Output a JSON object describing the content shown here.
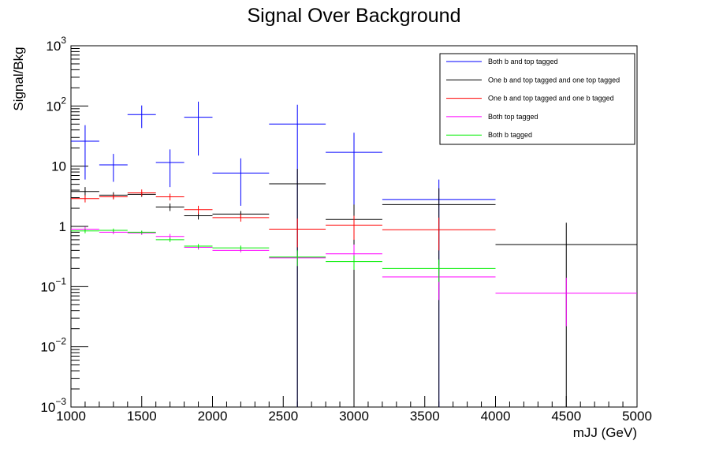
{
  "chart_data": {
    "type": "scatter",
    "title": "Signal Over Background",
    "xlabel": "mJJ (GeV)",
    "ylabel": "Signal/Bkg",
    "xlim": [
      1000,
      5000
    ],
    "ylim": [
      0.001,
      1000
    ],
    "y_scale": "log",
    "x_ticks": [
      1000,
      1500,
      2000,
      2500,
      3000,
      3500,
      4000,
      4500,
      5000
    ],
    "x_tick_labels": [
      "1000",
      "1500",
      "2000",
      "2500",
      "3000",
      "3500",
      "4000",
      "4500",
      "5000"
    ],
    "y_ticks": [
      {
        "value": 0.001,
        "base": "10",
        "exp": "−3"
      },
      {
        "value": 0.01,
        "base": "10",
        "exp": "−2"
      },
      {
        "value": 0.1,
        "base": "10",
        "exp": "−1"
      },
      {
        "value": 1,
        "base": "1",
        "exp": ""
      },
      {
        "value": 10,
        "base": "10",
        "exp": ""
      },
      {
        "value": 100,
        "base": "10",
        "exp": "2"
      },
      {
        "value": 1000,
        "base": "10",
        "exp": "3"
      }
    ],
    "legend_position": "top-right",
    "series": [
      {
        "name": "Both b and top tagged",
        "color": "#0000ff",
        "points": [
          {
            "x0": 1000,
            "x1": 1200,
            "y": 26,
            "ylo": 6,
            "yhi": 48
          },
          {
            "x0": 1200,
            "x1": 1400,
            "y": 10.5,
            "ylo": 5.5,
            "yhi": 16
          },
          {
            "x0": 1400,
            "x1": 1600,
            "y": 72,
            "ylo": 43,
            "yhi": 102
          },
          {
            "x0": 1600,
            "x1": 1800,
            "y": 11.5,
            "ylo": 4.5,
            "yhi": 19
          },
          {
            "x0": 1800,
            "x1": 2000,
            "y": 65,
            "ylo": 15,
            "yhi": 118
          },
          {
            "x0": 2000,
            "x1": 2400,
            "y": 7.7,
            "ylo": 2.2,
            "yhi": 13.5
          },
          {
            "x0": 2400,
            "x1": 2800,
            "y": 50,
            "ylo": 0.001,
            "yhi": 105
          },
          {
            "x0": 2800,
            "x1": 3200,
            "y": 17,
            "ylo": 0.001,
            "yhi": 36
          },
          {
            "x0": 3200,
            "x1": 4000,
            "y": 2.8,
            "ylo": 0.001,
            "yhi": 6
          }
        ]
      },
      {
        "name": "One b and top tagged and one top tagged",
        "color": "#000000",
        "points": [
          {
            "x0": 1000,
            "x1": 1200,
            "y": 3.8,
            "ylo": 3.1,
            "yhi": 4.5
          },
          {
            "x0": 1200,
            "x1": 1400,
            "y": 3.3,
            "ylo": 2.9,
            "yhi": 3.7
          },
          {
            "x0": 1400,
            "x1": 1600,
            "y": 3.4,
            "ylo": 3.1,
            "yhi": 3.7
          },
          {
            "x0": 1600,
            "x1": 1800,
            "y": 2.1,
            "ylo": 1.8,
            "yhi": 2.4
          },
          {
            "x0": 1800,
            "x1": 2000,
            "y": 1.5,
            "ylo": 1.3,
            "yhi": 1.7
          },
          {
            "x0": 2000,
            "x1": 2400,
            "y": 1.6,
            "ylo": 1.4,
            "yhi": 1.8
          },
          {
            "x0": 2400,
            "x1": 2800,
            "y": 5.1,
            "ylo": 0.001,
            "yhi": 9
          },
          {
            "x0": 2800,
            "x1": 3200,
            "y": 1.3,
            "ylo": 0.001,
            "yhi": 2.3
          },
          {
            "x0": 3200,
            "x1": 4000,
            "y": 2.3,
            "ylo": 0.001,
            "yhi": 4.3
          },
          {
            "x0": 4000,
            "x1": 5000,
            "y": 0.5,
            "ylo": 0.001,
            "yhi": 1.15
          }
        ]
      },
      {
        "name": "One b and top tagged and one b tagged",
        "color": "#ff0000",
        "points": [
          {
            "x0": 1000,
            "x1": 1200,
            "y": 2.9,
            "ylo": 2.5,
            "yhi": 3.3
          },
          {
            "x0": 1200,
            "x1": 1400,
            "y": 3.1,
            "ylo": 2.8,
            "yhi": 3.4
          },
          {
            "x0": 1400,
            "x1": 1600,
            "y": 3.6,
            "ylo": 3.2,
            "yhi": 4.1
          },
          {
            "x0": 1600,
            "x1": 1800,
            "y": 3.1,
            "ylo": 2.7,
            "yhi": 3.5
          },
          {
            "x0": 1800,
            "x1": 2000,
            "y": 1.9,
            "ylo": 1.6,
            "yhi": 2.2
          },
          {
            "x0": 2000,
            "x1": 2400,
            "y": 1.4,
            "ylo": 1.2,
            "yhi": 1.6
          },
          {
            "x0": 2400,
            "x1": 2800,
            "y": 0.9,
            "ylo": 0.45,
            "yhi": 1.35
          },
          {
            "x0": 2800,
            "x1": 3200,
            "y": 1.05,
            "ylo": 0.6,
            "yhi": 1.5
          },
          {
            "x0": 3200,
            "x1": 4000,
            "y": 0.88,
            "ylo": 0.4,
            "yhi": 1.4
          }
        ]
      },
      {
        "name": "Both top tagged",
        "color": "#ff00ff",
        "points": [
          {
            "x0": 1000,
            "x1": 1200,
            "y": 0.9,
            "ylo": 0.82,
            "yhi": 0.98
          },
          {
            "x0": 1200,
            "x1": 1400,
            "y": 0.8,
            "ylo": 0.74,
            "yhi": 0.86
          },
          {
            "x0": 1400,
            "x1": 1600,
            "y": 0.78,
            "ylo": 0.72,
            "yhi": 0.84
          },
          {
            "x0": 1600,
            "x1": 1800,
            "y": 0.68,
            "ylo": 0.61,
            "yhi": 0.75
          },
          {
            "x0": 1800,
            "x1": 2000,
            "y": 0.45,
            "ylo": 0.41,
            "yhi": 0.49
          },
          {
            "x0": 2000,
            "x1": 2400,
            "y": 0.4,
            "ylo": 0.37,
            "yhi": 0.43
          },
          {
            "x0": 2400,
            "x1": 2800,
            "y": 0.3,
            "ylo": 0.22,
            "yhi": 0.38
          },
          {
            "x0": 2800,
            "x1": 3200,
            "y": 0.35,
            "ylo": 0.2,
            "yhi": 0.5
          },
          {
            "x0": 3200,
            "x1": 4000,
            "y": 0.145,
            "ylo": 0.06,
            "yhi": 0.23
          },
          {
            "x0": 4000,
            "x1": 5000,
            "y": 0.078,
            "ylo": 0.022,
            "yhi": 0.14
          }
        ]
      },
      {
        "name": "Both b tagged",
        "color": "#00ee00",
        "points": [
          {
            "x0": 1000,
            "x1": 1200,
            "y": 0.84,
            "ylo": 0.77,
            "yhi": 0.91
          },
          {
            "x0": 1200,
            "x1": 1400,
            "y": 0.86,
            "ylo": 0.8,
            "yhi": 0.92
          },
          {
            "x0": 1400,
            "x1": 1600,
            "y": 0.8,
            "ylo": 0.75,
            "yhi": 0.85
          },
          {
            "x0": 1600,
            "x1": 1800,
            "y": 0.6,
            "ylo": 0.55,
            "yhi": 0.65
          },
          {
            "x0": 1800,
            "x1": 2000,
            "y": 0.47,
            "ylo": 0.43,
            "yhi": 0.51
          },
          {
            "x0": 2000,
            "x1": 2400,
            "y": 0.44,
            "ylo": 0.4,
            "yhi": 0.48
          },
          {
            "x0": 2400,
            "x1": 2800,
            "y": 0.31,
            "ylo": 0.22,
            "yhi": 0.4
          },
          {
            "x0": 2800,
            "x1": 3200,
            "y": 0.26,
            "ylo": 0.19,
            "yhi": 0.33
          },
          {
            "x0": 3200,
            "x1": 4000,
            "y": 0.2,
            "ylo": 0.12,
            "yhi": 0.28
          }
        ]
      }
    ]
  }
}
